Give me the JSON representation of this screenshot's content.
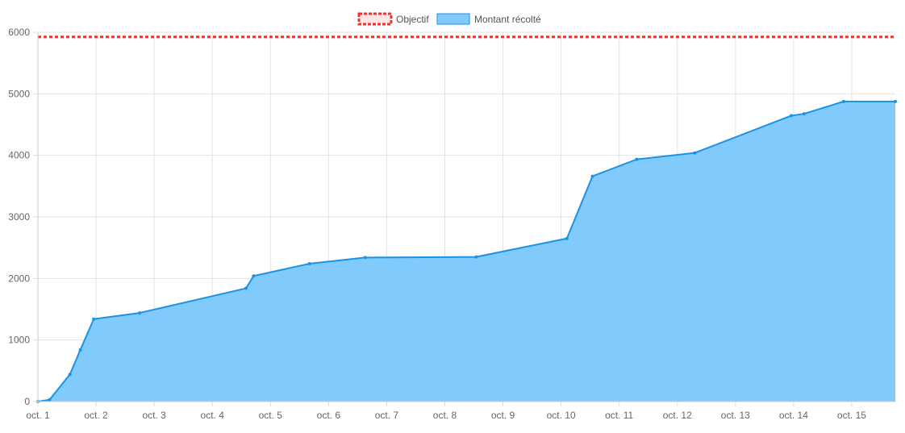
{
  "chart_data": {
    "type": "area",
    "title": "",
    "xlabel": "",
    "ylabel": "",
    "x_axis_unit": "days since oct. 1 (labelled by date)",
    "xlim": [
      0,
      14.75
    ],
    "ylim": [
      0,
      6000
    ],
    "grid": true,
    "legend": "top-center",
    "x_tick_labels": [
      "oct. 1",
      "oct. 2",
      "oct. 3",
      "oct. 4",
      "oct. 5",
      "oct. 6",
      "oct. 7",
      "oct. 8",
      "oct. 9",
      "oct. 10",
      "oct. 11",
      "oct. 12",
      "oct. 13",
      "oct. 14",
      "oct. 15"
    ],
    "y_ticks": [
      0,
      1000,
      2000,
      3000,
      4000,
      5000,
      6000
    ],
    "objectif": {
      "name": "Objectif",
      "value": 5925,
      "color": "#ee3333"
    },
    "series": [
      {
        "name": "Montant récolté",
        "line_color": "#1a93e6",
        "fill_color": "#80cafc",
        "points": [
          [
            0.0,
            0
          ],
          [
            0.2,
            30
          ],
          [
            0.55,
            440
          ],
          [
            0.73,
            840
          ],
          [
            0.96,
            1340
          ],
          [
            1.75,
            1440
          ],
          [
            3.58,
            1840
          ],
          [
            3.71,
            2040
          ],
          [
            4.67,
            2240
          ],
          [
            5.63,
            2340
          ],
          [
            7.54,
            2350
          ],
          [
            9.1,
            2650
          ],
          [
            9.54,
            3660
          ],
          [
            10.3,
            3935
          ],
          [
            11.3,
            4040
          ],
          [
            12.96,
            4645
          ],
          [
            13.18,
            4675
          ],
          [
            13.86,
            4875
          ],
          [
            14.75,
            4875
          ]
        ]
      }
    ]
  }
}
